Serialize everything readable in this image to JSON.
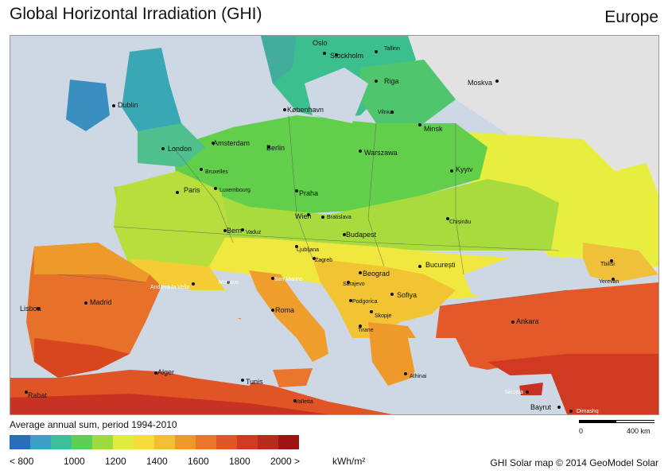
{
  "title": "Global Horizontal Irradiation (GHI)",
  "region": "Europe",
  "subtitle": "Average annual sum, period 1994-2010",
  "legend": {
    "colors": [
      "#2a6db8",
      "#3a9fc4",
      "#3cc09a",
      "#5acf52",
      "#9ddb3e",
      "#e2ec3e",
      "#f6dc3a",
      "#f2bf32",
      "#ee9a2a",
      "#e9762a",
      "#e05526",
      "#cf3a20",
      "#b82a1c",
      "#9e1414"
    ],
    "labels": [
      "< 800",
      "1000",
      "1200",
      "1400",
      "1600",
      "1800",
      "2000 >",
      "kWh/m²"
    ]
  },
  "scalebar": {
    "start": "0",
    "end": "400 km"
  },
  "credit": "GHI Solar map © 2014 GeoModel Solar",
  "cities": {
    "oslo": "Oslo",
    "stockholm": "Stockholm",
    "tallinn": "Tallinn",
    "riga": "Riga",
    "moskva": "Moskva",
    "dublin": "Dublin",
    "kobenhavn": "København",
    "vilnius": "Vilnius",
    "minsk": "Minsk",
    "london": "London",
    "amsterdam": "Amsterdam",
    "berlin": "Berlin",
    "warszawa": "Warszawa",
    "bruxelles": "Bruxelles",
    "kyyiv": "Kyyiv",
    "paris": "Paris",
    "luxembourg": "Luxembourg",
    "praha": "Praha",
    "wien": "Wien",
    "bratislava": "Bratislava",
    "chisinau": "Chișinău",
    "bern": "Bern",
    "vaduz": "Vaduz",
    "budapest": "Budapest",
    "ljubljana": "Ljubljana",
    "zagreb": "Zagreb",
    "tbilisi": "Tbilisi",
    "bucuresti": "București",
    "beograd": "Beograd",
    "sarajevo": "Sarajevo",
    "yerevan": "Yerevan",
    "andorra": "Andorra la Vella",
    "monaco": "Monaco",
    "sanmarino": "San Marino",
    "sofiya": "Sofiya",
    "podgorica": "Podgorica",
    "skopje": "Skopje",
    "lisboa": "Lisboa",
    "madrid": "Madrid",
    "roma": "Roma",
    "tirane": "Tirane",
    "ankara": "Ankara",
    "athinai": "Athinai",
    "alger": "Alger",
    "tunis": "Tunis",
    "nicosia": "Nicosia",
    "rabat": "Rabat",
    "valletta": "Valletta",
    "bayrut": "Bayrut",
    "dimashq": "Dimashq"
  }
}
